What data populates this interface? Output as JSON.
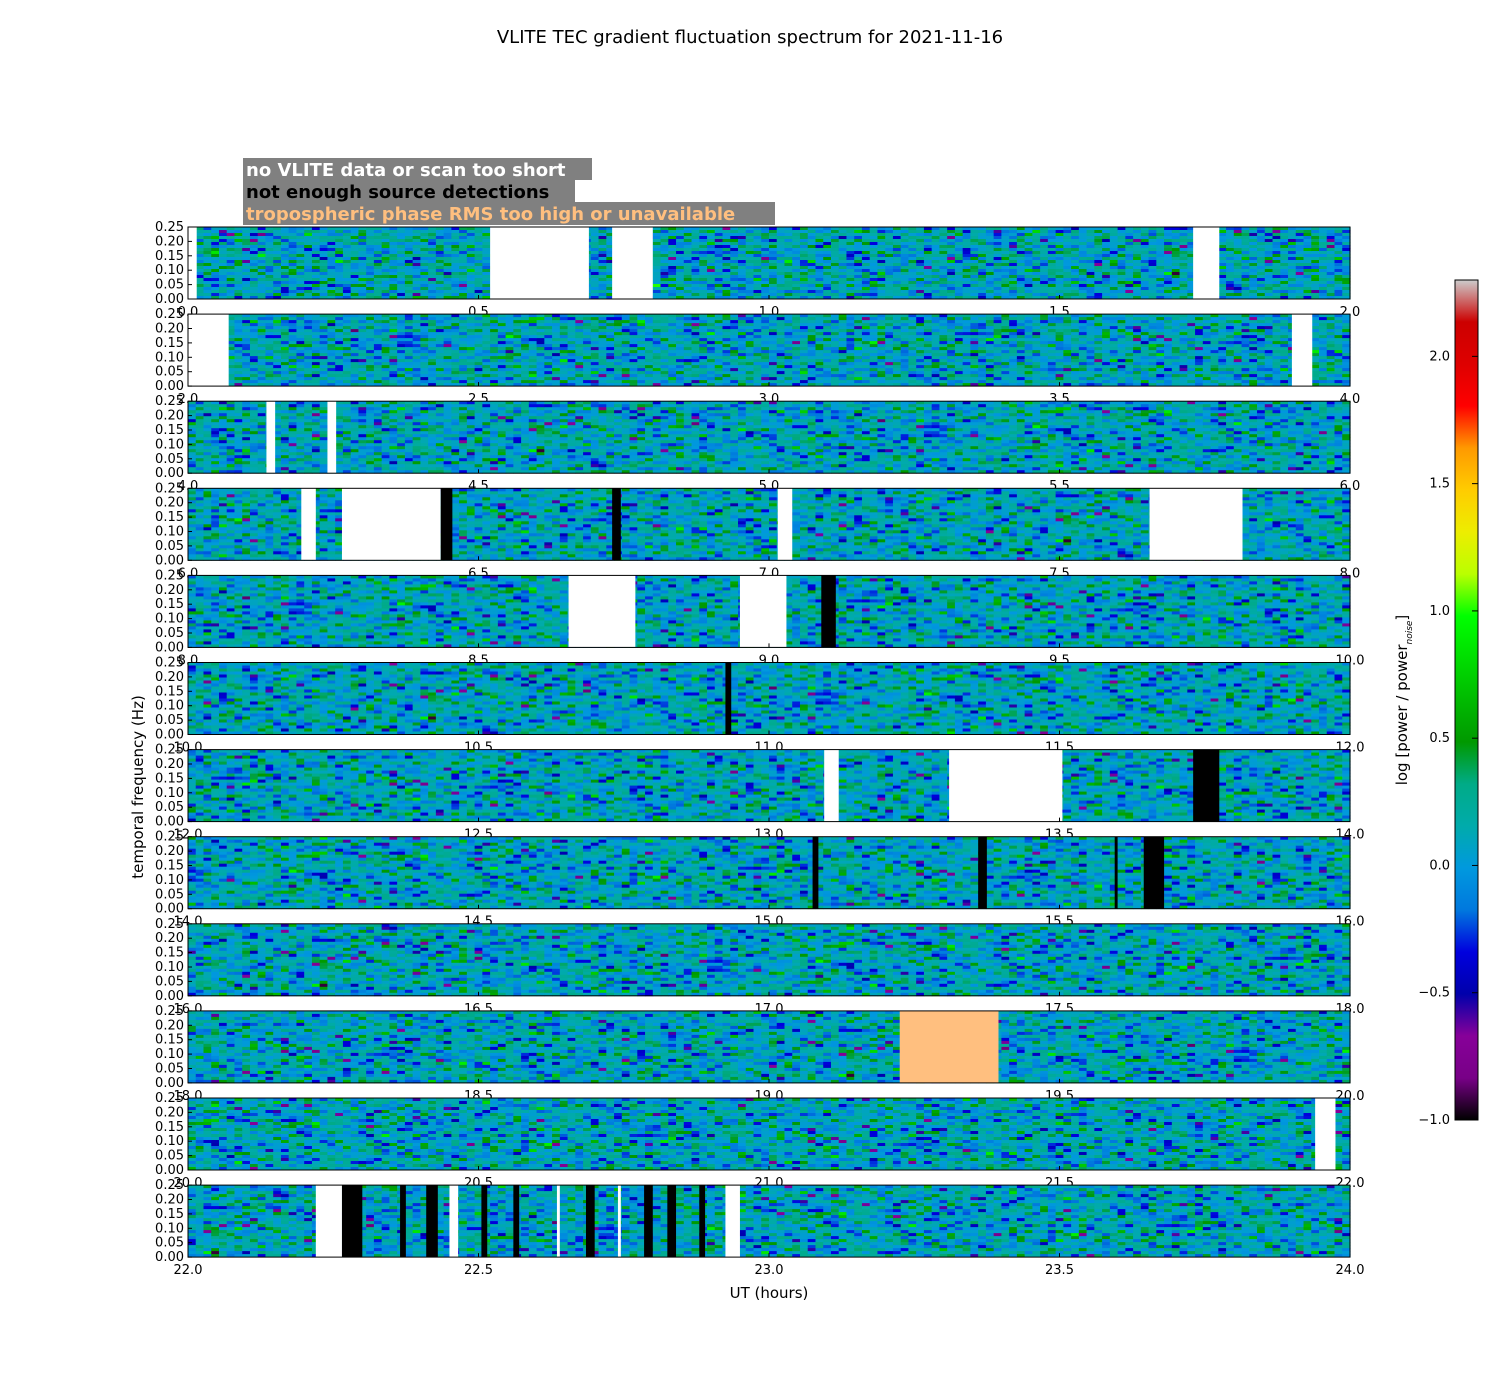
{
  "chart_data": {
    "type": "heatmap",
    "title": "VLITE TEC gradient fluctuation spectrum for 2021-11-16",
    "xlabel": "UT (hours)",
    "ylabel": "temporal frequency (Hz)",
    "colorbar_label": "log [power / power",
    "colorbar_label_sub": "noise",
    "colorbar_label_end": "]",
    "colorbar_range": [
      -1.0,
      2.3
    ],
    "colorbar_ticks": [
      "2.0",
      "1.5",
      "1.0",
      "0.5",
      "0.0",
      "−0.5",
      "−1.0"
    ],
    "colorbar_tick_values": [
      2.0,
      1.5,
      1.0,
      0.5,
      0.0,
      -0.5,
      -1.0
    ],
    "colormap": "nipy_spectral",
    "ylim": [
      0.0,
      0.25
    ],
    "y_ticks": [
      "0.25",
      "0.20",
      "0.15",
      "0.10",
      "0.05",
      "0.00"
    ],
    "y_tick_values": [
      0.25,
      0.2,
      0.15,
      0.1,
      0.05,
      0.0
    ],
    "legend": [
      {
        "label": "no VLITE data or scan too short",
        "color": "#ffffff"
      },
      {
        "label": "not enough source detections",
        "color": "#000000"
      },
      {
        "label": "tropospheric phase RMS too high or unavailable",
        "color": "#ffbf7f"
      }
    ],
    "legend_background": "#808080",
    "panels": [
      {
        "xlim": [
          0.0,
          2.0
        ],
        "x_ticks": [
          "0.0",
          "0.5",
          "1.0",
          "1.5",
          "2.0"
        ],
        "masks": [
          {
            "start": 0.0,
            "end": 0.015,
            "kind": "none"
          },
          {
            "start": 0.52,
            "end": 0.69,
            "kind": "none"
          },
          {
            "start": 0.73,
            "end": 0.8,
            "kind": "none"
          },
          {
            "start": 1.73,
            "end": 1.775,
            "kind": "none"
          }
        ]
      },
      {
        "xlim": [
          2.0,
          4.0
        ],
        "x_ticks": [
          "2.0",
          "2.5",
          "3.0",
          "3.5",
          "4.0"
        ],
        "masks": [
          {
            "start": 2.0,
            "end": 2.07,
            "kind": "none"
          },
          {
            "start": 3.9,
            "end": 3.935,
            "kind": "none"
          }
        ]
      },
      {
        "xlim": [
          4.0,
          6.0
        ],
        "x_ticks": [
          "4.0",
          "4.5",
          "5.0",
          "5.5",
          "6.0"
        ],
        "masks": [
          {
            "start": 4.135,
            "end": 4.15,
            "kind": "none"
          },
          {
            "start": 4.24,
            "end": 4.255,
            "kind": "none"
          }
        ]
      },
      {
        "xlim": [
          6.0,
          8.0
        ],
        "x_ticks": [
          "6.0",
          "6.5",
          "7.0",
          "7.5",
          "8.0"
        ],
        "masks": [
          {
            "start": 6.195,
            "end": 6.22,
            "kind": "none"
          },
          {
            "start": 6.265,
            "end": 6.435,
            "kind": "none"
          },
          {
            "start": 6.435,
            "end": 6.455,
            "kind": "detect"
          },
          {
            "start": 6.73,
            "end": 6.745,
            "kind": "detect"
          },
          {
            "start": 7.015,
            "end": 7.04,
            "kind": "none"
          },
          {
            "start": 7.655,
            "end": 7.815,
            "kind": "none"
          }
        ]
      },
      {
        "xlim": [
          8.0,
          10.0
        ],
        "x_ticks": [
          "8.0",
          "8.5",
          "9.0",
          "9.5",
          "10.0"
        ],
        "masks": [
          {
            "start": 8.655,
            "end": 8.77,
            "kind": "none"
          },
          {
            "start": 8.95,
            "end": 9.03,
            "kind": "none"
          },
          {
            "start": 9.09,
            "end": 9.115,
            "kind": "detect"
          }
        ]
      },
      {
        "xlim": [
          10.0,
          12.0
        ],
        "x_ticks": [
          "10.0",
          "10.5",
          "11.0",
          "11.5",
          "12.0"
        ],
        "masks": [
          {
            "start": 10.925,
            "end": 10.935,
            "kind": "detect"
          }
        ]
      },
      {
        "xlim": [
          12.0,
          14.0
        ],
        "x_ticks": [
          "12.0",
          "12.5",
          "13.0",
          "13.5",
          "14.0"
        ],
        "masks": [
          {
            "start": 13.095,
            "end": 13.12,
            "kind": "none"
          },
          {
            "start": 13.31,
            "end": 13.505,
            "kind": "none"
          },
          {
            "start": 13.73,
            "end": 13.775,
            "kind": "detect"
          }
        ]
      },
      {
        "xlim": [
          14.0,
          16.0
        ],
        "x_ticks": [
          "14.0",
          "14.5",
          "15.0",
          "15.5",
          "16.0"
        ],
        "masks": [
          {
            "start": 15.075,
            "end": 15.085,
            "kind": "detect"
          },
          {
            "start": 15.36,
            "end": 15.375,
            "kind": "detect"
          },
          {
            "start": 15.595,
            "end": 15.6,
            "kind": "detect"
          },
          {
            "start": 15.645,
            "end": 15.68,
            "kind": "detect"
          }
        ]
      },
      {
        "xlim": [
          16.0,
          18.0
        ],
        "x_ticks": [
          "16.0",
          "16.5",
          "17.0",
          "17.5",
          "18.0"
        ],
        "masks": []
      },
      {
        "xlim": [
          18.0,
          20.0
        ],
        "x_ticks": [
          "18.0",
          "18.5",
          "19.0",
          "19.5",
          "20.0"
        ],
        "masks": [
          {
            "start": 19.225,
            "end": 19.395,
            "kind": "tropo"
          }
        ]
      },
      {
        "xlim": [
          20.0,
          22.0
        ],
        "x_ticks": [
          "20.0",
          "20.5",
          "21.0",
          "21.5",
          "22.0"
        ],
        "masks": [
          {
            "start": 21.94,
            "end": 21.975,
            "kind": "none"
          }
        ]
      },
      {
        "xlim": [
          22.0,
          24.0
        ],
        "x_ticks": [
          "22.0",
          "22.5",
          "23.0",
          "23.5",
          "24.0"
        ],
        "masks": [
          {
            "start": 22.22,
            "end": 22.265,
            "kind": "none"
          },
          {
            "start": 22.265,
            "end": 22.3,
            "kind": "detect"
          },
          {
            "start": 22.365,
            "end": 22.375,
            "kind": "detect"
          },
          {
            "start": 22.41,
            "end": 22.43,
            "kind": "detect"
          },
          {
            "start": 22.45,
            "end": 22.465,
            "kind": "none"
          },
          {
            "start": 22.505,
            "end": 22.515,
            "kind": "detect"
          },
          {
            "start": 22.56,
            "end": 22.57,
            "kind": "detect"
          },
          {
            "start": 22.635,
            "end": 22.64,
            "kind": "none"
          },
          {
            "start": 22.685,
            "end": 22.7,
            "kind": "detect"
          },
          {
            "start": 22.74,
            "end": 22.745,
            "kind": "none"
          },
          {
            "start": 22.785,
            "end": 22.8,
            "kind": "detect"
          },
          {
            "start": 22.825,
            "end": 22.84,
            "kind": "detect"
          },
          {
            "start": 22.88,
            "end": 22.89,
            "kind": "detect"
          },
          {
            "start": 22.925,
            "end": 22.95,
            "kind": "none"
          }
        ]
      }
    ]
  }
}
